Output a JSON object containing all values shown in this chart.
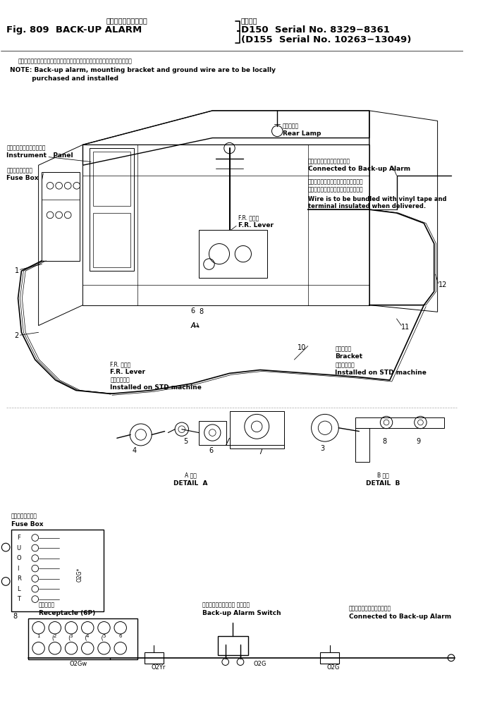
{
  "bg_color": "#ffffff",
  "title_jp": "バックアップアラーム",
  "title_en": "Fig. 809  BACK-UP ALARM",
  "title_model1": "D150  Serial No. 8329−8361",
  "title_model2": "(D155  Serial No. 10263−13049)",
  "title_applicable": "適用号機",
  "note_jp": "注）バックアップアラーム，取付ブラケット，アース線等は現地装着とする．",
  "note_en1": "NOTE: Back-up alarm, mounting bracket and ground wire are to be locally",
  "note_en2": "          purchased and installed",
  "lbl_ip_jp": "インスツルメント　パネル",
  "lbl_ip_en": "Instrument   Panel",
  "lbl_fb_jp": "ヒューズボックス",
  "lbl_fb_en": "Fuse Box",
  "lbl_rl_jp": "後　照　灯",
  "lbl_rl_en": "Rear Lamp",
  "lbl_conn_jp": "バックアップアラームに接続",
  "lbl_conn_en": "Connected to Back-up Alarm",
  "lbl_wire_jp1": "出荷時はビニールテープ束てワイヤを",
  "lbl_wire_jp2": "束ねておき端子は絶縁しておくこと．",
  "lbl_wire_en1": "Wire is to be bundled with vinyl tape and",
  "lbl_wire_en2": "terminal insulated when delivered.",
  "lbl_frlever_jp": "F.R. レバー",
  "lbl_frlever_en": "F.R. Lever",
  "lbl_frlever2_jp": "F.R. レバー",
  "lbl_frlever2_en": "F.R. Lever",
  "lbl_std_jp": "標準車装着品",
  "lbl_std_en": "Installed on STD machine",
  "lbl_brk_jp": "ブラケット",
  "lbl_brk_en": "Bracket",
  "lbl_brk_std_jp": "標準車装着品",
  "lbl_brk_std_en": "Installed on STD machine",
  "lbl_detA_jp": "A 詳細",
  "lbl_detA_en": "DETAIL  A",
  "lbl_detB_jp": "B 詳細",
  "lbl_detB_en": "DETAIL  B",
  "lbl_fb2_jp": "ヒューズボックス",
  "lbl_fb2_en": "Fuse Box",
  "lbl_rec_jp": "コンセント",
  "lbl_rec_en": "Receptacle (6P)",
  "lbl_sw_jp": "バックアップアラーム スイッチ",
  "lbl_sw_en": "Back-up Alarm Switch",
  "lbl_conn2_jp": "バックアップアラームに接続",
  "lbl_conn2_en": "Connected to Back-up Alarm",
  "fuse_labels": [
    "F",
    "U",
    "O",
    "I",
    "R",
    "L",
    "T"
  ]
}
